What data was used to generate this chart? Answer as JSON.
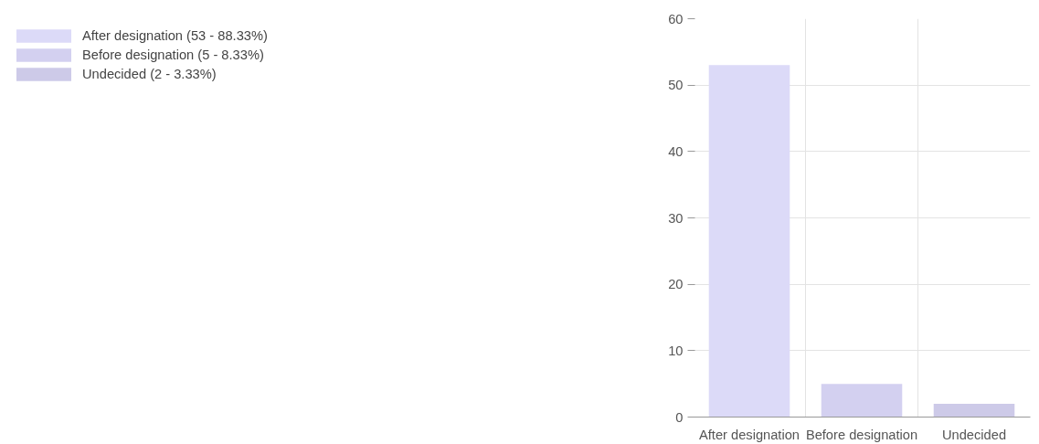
{
  "chart_data": {
    "type": "bar",
    "categories": [
      "After designation",
      "Before designation",
      "Undecided"
    ],
    "series": [
      {
        "name": "After designation (53 - 88.33%)",
        "color": "#dcdaf8",
        "values": [
          53,
          null,
          null
        ]
      },
      {
        "name": "Before designation (5 - 8.33%)",
        "color": "#d3d0f0",
        "values": [
          null,
          5,
          null
        ]
      },
      {
        "name": "Undecided (2 - 3.33%)",
        "color": "#cdcae8",
        "values": [
          null,
          null,
          2
        ]
      }
    ],
    "ylim": [
      0,
      60
    ],
    "yticks": [
      0,
      10,
      20,
      30,
      40,
      50,
      60
    ],
    "grid": true,
    "legend": "top left"
  }
}
